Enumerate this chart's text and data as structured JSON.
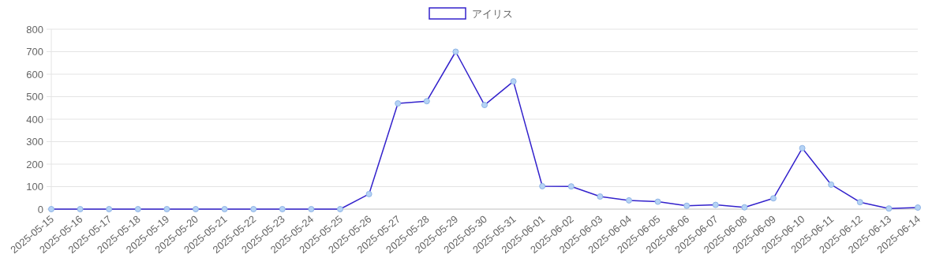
{
  "chart_data": {
    "type": "line",
    "categories": [
      "2025-05-15",
      "2025-05-16",
      "2025-05-17",
      "2025-05-18",
      "2025-05-19",
      "2025-05-20",
      "2025-05-21",
      "2025-05-22",
      "2025-05-23",
      "2025-05-24",
      "2025-05-25",
      "2025-05-26",
      "2025-05-27",
      "2025-05-28",
      "2025-05-29",
      "2025-05-30",
      "2025-05-31",
      "2025-06-01",
      "2025-06-02",
      "2025-06-03",
      "2025-06-04",
      "2025-06-05",
      "2025-06-06",
      "2025-06-07",
      "2025-06-08",
      "2025-06-09",
      "2025-06-10",
      "2025-06-11",
      "2025-06-12",
      "2025-06-13",
      "2025-06-14"
    ],
    "series": [
      {
        "name": "アイリス",
        "color": "#3322cc",
        "values": [
          0,
          0,
          0,
          0,
          0,
          0,
          0,
          0,
          0,
          0,
          0,
          67,
          470,
          480,
          700,
          463,
          568,
          102,
          101,
          56,
          39,
          33,
          15,
          19,
          8,
          48,
          271,
          109,
          31,
          3,
          7
        ]
      }
    ],
    "ylim": [
      0,
      800
    ],
    "yticks": [
      0,
      100,
      200,
      300,
      400,
      500,
      600,
      700,
      800
    ],
    "grid": "y",
    "legend": "top",
    "marker": "circle",
    "line_style": "solid"
  }
}
